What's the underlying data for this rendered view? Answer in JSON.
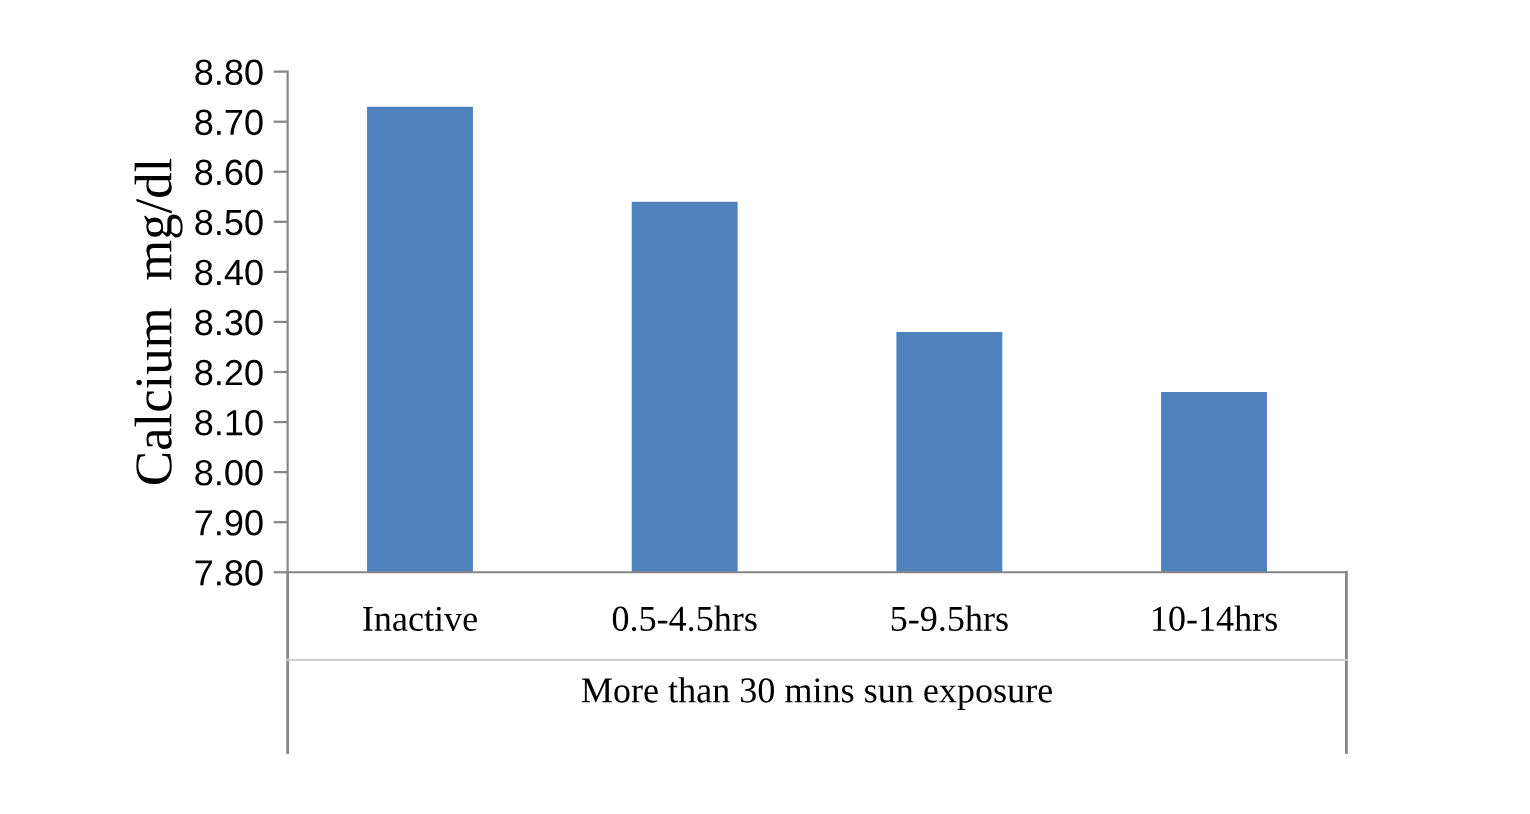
{
  "chart_data": {
    "type": "bar",
    "categories": [
      "Inactive",
      "0.5-4.5hrs",
      "5-9.5hrs",
      "10-14hrs"
    ],
    "values": [
      8.73,
      8.54,
      8.28,
      8.16
    ],
    "color": "#4f81bd",
    "xlabel": "More than 30 mins sun exposure",
    "ylabel": "Calcium  mg/dl",
    "ylim": [
      7.8,
      8.8
    ],
    "yticks": [
      {
        "value": 7.8,
        "label": "7.80"
      },
      {
        "value": 7.9,
        "label": "7.90"
      },
      {
        "value": 8.0,
        "label": "8.00"
      },
      {
        "value": 8.1,
        "label": "8.10"
      },
      {
        "value": 8.2,
        "label": "8.20"
      },
      {
        "value": 8.3,
        "label": "8.30"
      },
      {
        "value": 8.4,
        "label": "8.40"
      },
      {
        "value": 8.5,
        "label": "8.50"
      },
      {
        "value": 8.6,
        "label": "8.60"
      },
      {
        "value": 8.7,
        "label": "8.70"
      },
      {
        "value": 8.8,
        "label": "8.80"
      }
    ],
    "grid": false,
    "legend": false
  }
}
